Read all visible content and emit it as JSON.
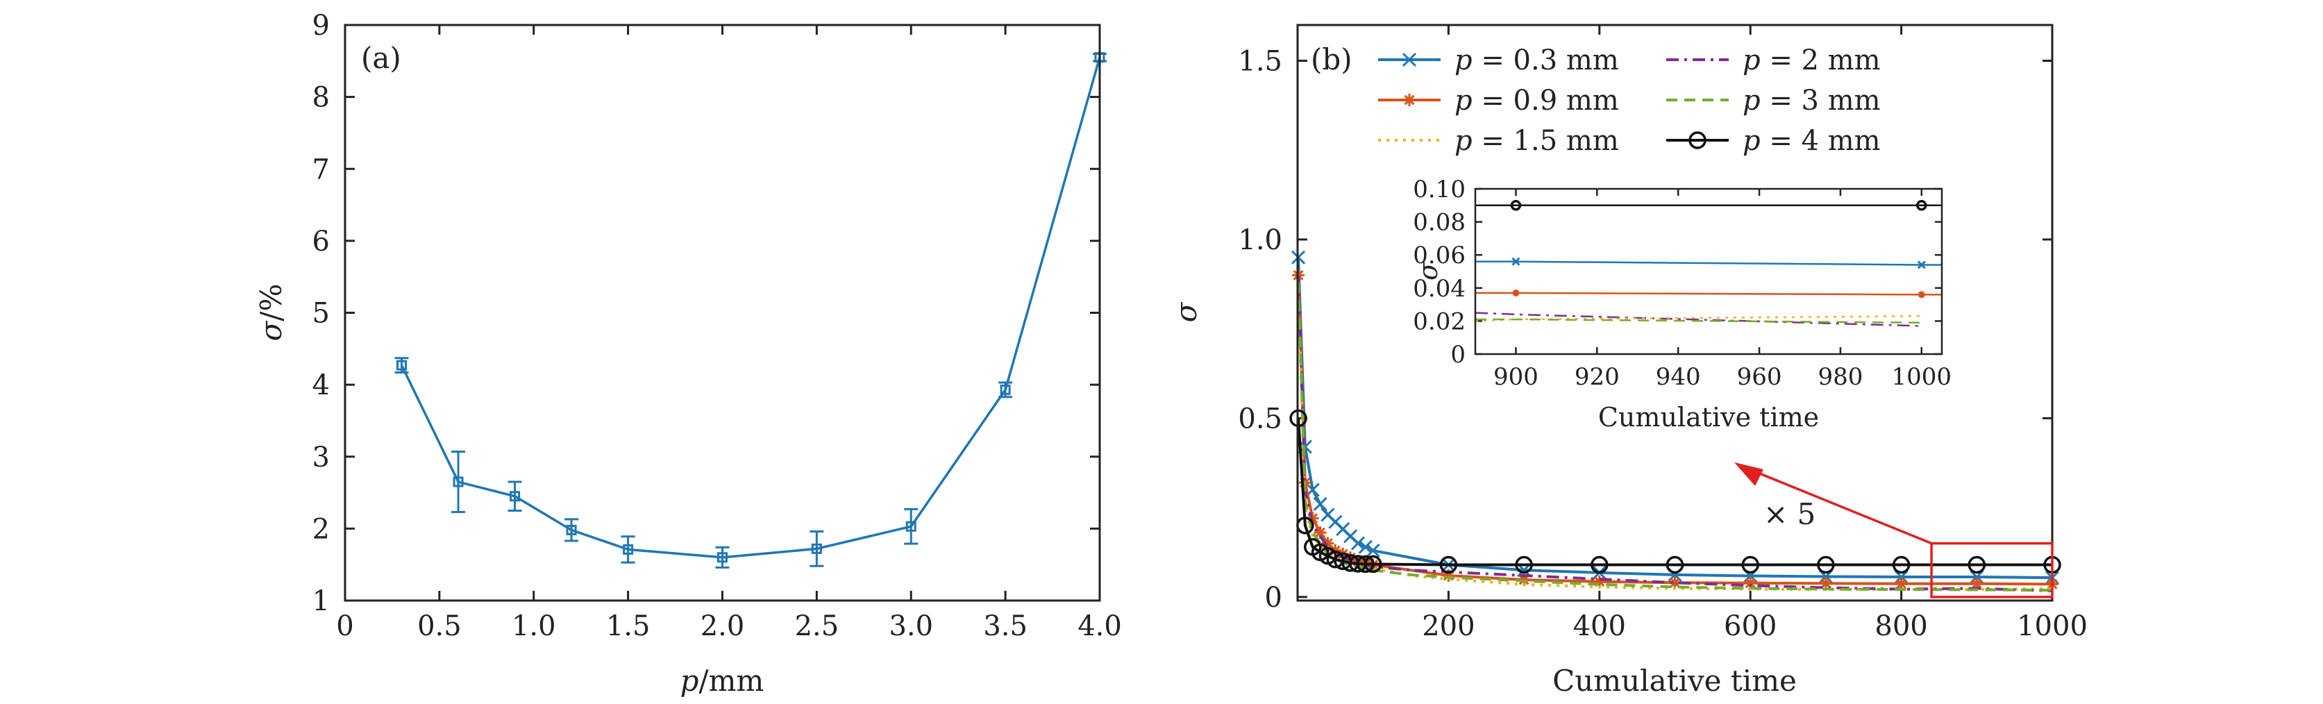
{
  "chart_data": [
    {
      "panel_label": "(a)",
      "type": "line",
      "xlabel_italic": "p",
      "xlabel_rest": "/mm",
      "ylabel_italic": "σ",
      "ylabel_rest": "/%",
      "xlim": [
        0,
        4.0
      ],
      "ylim": [
        1,
        9
      ],
      "xticks": [
        0,
        0.5,
        1.0,
        1.5,
        2.0,
        2.5,
        3.0,
        3.5,
        4.0
      ],
      "xtick_labels": [
        "0",
        "0.5",
        "1.0",
        "1.5",
        "2.0",
        "2.5",
        "3.0",
        "3.5",
        "4.0"
      ],
      "yticks": [
        1,
        2,
        3,
        4,
        5,
        6,
        7,
        8,
        9
      ],
      "ytick_labels": [
        "1",
        "2",
        "3",
        "4",
        "5",
        "6",
        "7",
        "8",
        "9"
      ],
      "color": "#1f77b4",
      "points": [
        {
          "x": 0.3,
          "y": 4.27,
          "err": 0.1
        },
        {
          "x": 0.6,
          "y": 2.65,
          "err": 0.42
        },
        {
          "x": 0.9,
          "y": 2.45,
          "err": 0.2
        },
        {
          "x": 1.2,
          "y": 1.98,
          "err": 0.15
        },
        {
          "x": 1.5,
          "y": 1.71,
          "err": 0.18
        },
        {
          "x": 2.0,
          "y": 1.6,
          "err": 0.14
        },
        {
          "x": 2.5,
          "y": 1.72,
          "err": 0.24
        },
        {
          "x": 3.0,
          "y": 2.03,
          "err": 0.24
        },
        {
          "x": 3.5,
          "y": 3.93,
          "err": 0.1
        },
        {
          "x": 4.0,
          "y": 8.55,
          "err": 0.05
        }
      ]
    },
    {
      "panel_label": "(b)",
      "type": "line",
      "xlabel": "Cumulative time",
      "ylabel_italic": "σ",
      "xlim": [
        0,
        1000
      ],
      "ylim": [
        -0.01,
        1.6
      ],
      "xticks": [
        200,
        400,
        600,
        800,
        1000
      ],
      "xtick_labels": [
        "200",
        "400",
        "600",
        "800",
        "1000"
      ],
      "yticks": [
        0,
        0.5,
        1.0,
        1.5
      ],
      "ytick_labels": [
        "0",
        "0.5",
        "1.0",
        "1.5"
      ],
      "annotation": "× 5",
      "zoom_box": {
        "x": [
          840,
          1000
        ],
        "y": [
          0,
          0.15
        ]
      },
      "series": [
        {
          "name_var": "p",
          "name_rest": " = 0.3 mm",
          "color": "#1f77b4",
          "dash": "",
          "marker": "x",
          "x": [
            1,
            10,
            20,
            30,
            40,
            50,
            60,
            70,
            80,
            90,
            100,
            200,
            300,
            400,
            500,
            600,
            700,
            800,
            900,
            1000
          ],
          "y": [
            0.95,
            0.42,
            0.3,
            0.26,
            0.23,
            0.21,
            0.19,
            0.17,
            0.15,
            0.14,
            0.13,
            0.09,
            0.075,
            0.068,
            0.062,
            0.059,
            0.057,
            0.056,
            0.056,
            0.054
          ]
        },
        {
          "name_var": "p",
          "name_rest": " = 0.9 mm",
          "color": "#d95319",
          "dash": "",
          "marker": "star",
          "x": [
            1,
            10,
            20,
            30,
            40,
            50,
            60,
            70,
            80,
            90,
            100,
            200,
            300,
            400,
            500,
            600,
            700,
            800,
            900,
            1000
          ],
          "y": [
            0.9,
            0.32,
            0.22,
            0.18,
            0.15,
            0.13,
            0.12,
            0.11,
            0.1,
            0.095,
            0.09,
            0.06,
            0.048,
            0.043,
            0.04,
            0.039,
            0.038,
            0.037,
            0.037,
            0.036
          ]
        },
        {
          "name_var": "p",
          "name_rest": " = 1.5 mm",
          "color": "#edb120",
          "dash": "4,8",
          "marker": "",
          "x": [
            1,
            10,
            20,
            40,
            60,
            80,
            100,
            150,
            200,
            300,
            400,
            500,
            600,
            700,
            800,
            900,
            1000
          ],
          "y": [
            0.85,
            0.25,
            0.17,
            0.12,
            0.1,
            0.09,
            0.08,
            0.06,
            0.05,
            0.035,
            0.028,
            0.024,
            0.022,
            0.021,
            0.021,
            0.021,
            0.023
          ]
        },
        {
          "name_var": "p",
          "name_rest": " = 2 mm",
          "color": "#7e2f8e",
          "dash": "18,8,4,8",
          "marker": "",
          "x": [
            1,
            10,
            20,
            40,
            60,
            80,
            100,
            150,
            200,
            300,
            400,
            500,
            600,
            700,
            800,
            900,
            1000
          ],
          "y": [
            0.9,
            0.3,
            0.2,
            0.14,
            0.11,
            0.095,
            0.085,
            0.075,
            0.07,
            0.06,
            0.05,
            0.04,
            0.032,
            0.026,
            0.022,
            0.024,
            0.017
          ]
        },
        {
          "name_var": "p",
          "name_rest": " = 3 mm",
          "color": "#77ac30",
          "dash": "16,10",
          "marker": "",
          "x": [
            1,
            10,
            20,
            40,
            60,
            80,
            100,
            150,
            200,
            300,
            400,
            500,
            600,
            700,
            800,
            900,
            1000
          ],
          "y": [
            0.88,
            0.27,
            0.18,
            0.12,
            0.095,
            0.085,
            0.075,
            0.062,
            0.055,
            0.045,
            0.035,
            0.028,
            0.024,
            0.022,
            0.021,
            0.02,
            0.019
          ]
        },
        {
          "name_var": "p",
          "name_rest": " = 4 mm",
          "color": "#111111",
          "dash": "",
          "marker": "circle",
          "x": [
            1,
            10,
            20,
            30,
            40,
            50,
            60,
            70,
            80,
            90,
            100,
            200,
            300,
            400,
            500,
            600,
            700,
            800,
            900,
            1000
          ],
          "y": [
            0.5,
            0.2,
            0.14,
            0.125,
            0.115,
            0.105,
            0.1,
            0.095,
            0.093,
            0.092,
            0.092,
            0.09,
            0.09,
            0.09,
            0.09,
            0.09,
            0.09,
            0.09,
            0.09,
            0.09
          ]
        }
      ],
      "inset": {
        "xlabel": "Cumulative time",
        "ylabel_italic": "σ",
        "xlim": [
          890,
          1005
        ],
        "ylim": [
          0,
          0.1
        ],
        "xticks": [
          900,
          920,
          940,
          960,
          980,
          1000
        ],
        "xtick_labels": [
          "900",
          "920",
          "940",
          "960",
          "980",
          "1000"
        ],
        "yticks": [
          0,
          0.02,
          0.04,
          0.06,
          0.08,
          0.1
        ],
        "ytick_labels": [
          "0",
          "0.02",
          "0.04",
          "0.06",
          "0.08",
          "0.10"
        ],
        "series": [
          {
            "color": "#111111",
            "dash": "",
            "marker": "circle",
            "x": [
              890,
              900,
              1000,
              1005
            ],
            "y": [
              0.09,
              0.09,
              0.09,
              0.09
            ]
          },
          {
            "color": "#1f77b4",
            "dash": "",
            "marker": "x",
            "x": [
              890,
              900,
              1000,
              1005
            ],
            "y": [
              0.056,
              0.056,
              0.054,
              0.054
            ]
          },
          {
            "color": "#d95319",
            "dash": "",
            "marker": "star",
            "x": [
              890,
              900,
              1000,
              1005
            ],
            "y": [
              0.037,
              0.037,
              0.036,
              0.036
            ]
          },
          {
            "color": "#7e2f8e",
            "dash": "18,8,4,8",
            "marker": "",
            "x": [
              890,
              900,
              1000
            ],
            "y": [
              0.025,
              0.024,
              0.017
            ]
          },
          {
            "color": "#edb120",
            "dash": "4,8",
            "marker": "",
            "x": [
              890,
              900,
              1000
            ],
            "y": [
              0.02,
              0.021,
              0.023
            ]
          },
          {
            "color": "#77ac30",
            "dash": "16,10",
            "marker": "",
            "x": [
              890,
              900,
              1000
            ],
            "y": [
              0.021,
              0.021,
              0.019
            ]
          }
        ]
      }
    }
  ]
}
